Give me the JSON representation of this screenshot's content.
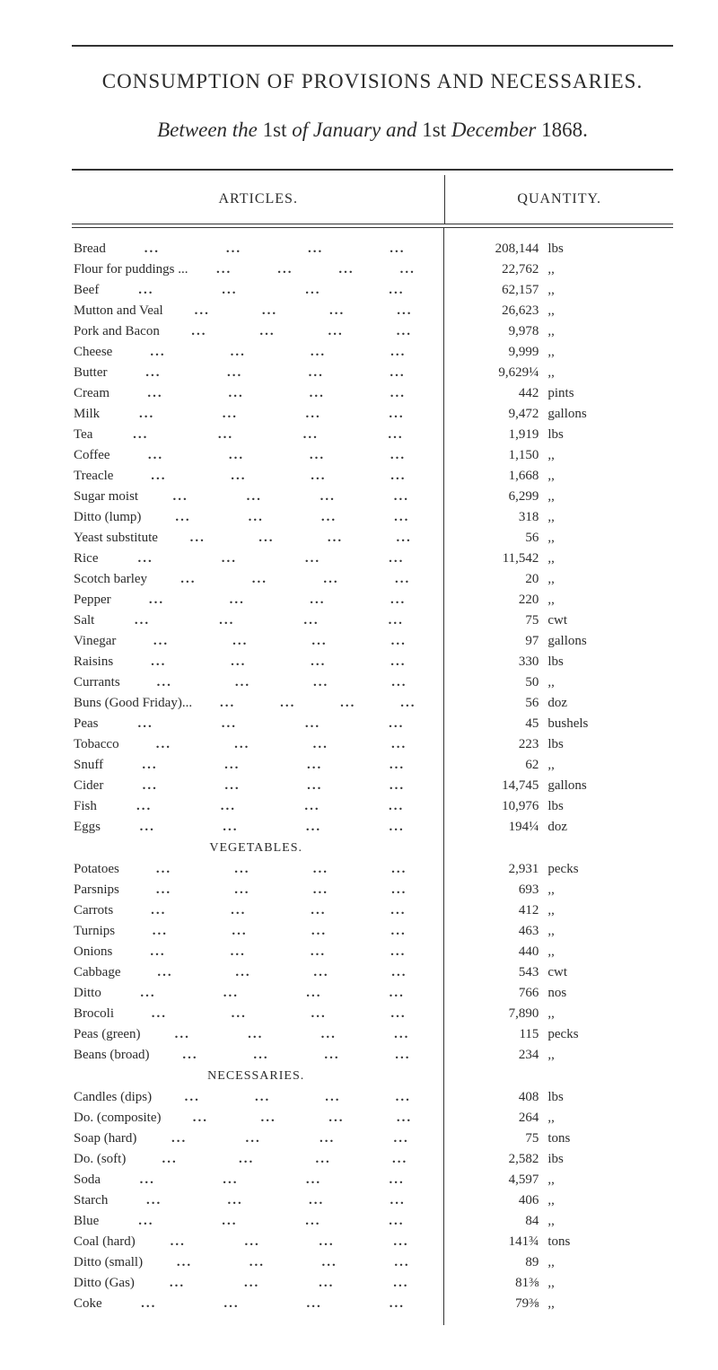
{
  "title": "CONSUMPTION OF PROVISIONS AND NECESSARIES.",
  "subtitle_parts": {
    "a": "Between the ",
    "b": "1st ",
    "c": "of January and ",
    "d": "1st ",
    "e": "December ",
    "f": "1868."
  },
  "column_headers": {
    "articles": "ARTICLES.",
    "quantity": "QUANTITY."
  },
  "section_headers": {
    "vegetables": "VEGETABLES.",
    "necessaries": "NECESSARIES."
  },
  "rows": [
    {
      "label": "Bread",
      "qty": "208,144",
      "unit": "lbs"
    },
    {
      "label": "Flour for puddings ...",
      "qty": "22,762",
      "unit": ",,"
    },
    {
      "label": "Beef",
      "qty": "62,157",
      "unit": ",,"
    },
    {
      "label": "Mutton and Veal",
      "qty": "26,623",
      "unit": ",,"
    },
    {
      "label": "Pork and Bacon",
      "qty": "9,978",
      "unit": ",,"
    },
    {
      "label": "Cheese",
      "qty": "9,999",
      "unit": ",,"
    },
    {
      "label": "Butter",
      "qty": "9,629¼",
      "unit": ",,"
    },
    {
      "label": "Cream",
      "qty": "442",
      "unit": "pints"
    },
    {
      "label": "Milk",
      "qty": "9,472",
      "unit": "gallons"
    },
    {
      "label": "Tea",
      "qty": "1,919",
      "unit": "lbs"
    },
    {
      "label": "Coffee",
      "qty": "1,150",
      "unit": ",,"
    },
    {
      "label": "Treacle",
      "qty": "1,668",
      "unit": ",,"
    },
    {
      "label": "Sugar moist",
      "qty": "6,299",
      "unit": ",,"
    },
    {
      "label": "Ditto (lump)",
      "qty": "318",
      "unit": ",,"
    },
    {
      "label": "Yeast substitute",
      "qty": "56",
      "unit": ",,"
    },
    {
      "label": "Rice",
      "qty": "11,542",
      "unit": ",,"
    },
    {
      "label": "Scotch barley",
      "qty": "20",
      "unit": ",,"
    },
    {
      "label": "Pepper",
      "qty": "220",
      "unit": ",,"
    },
    {
      "label": "Salt",
      "qty": "75",
      "unit": "cwt"
    },
    {
      "label": "Vinegar",
      "qty": "97",
      "unit": "gallons"
    },
    {
      "label": "Raisins",
      "qty": "330",
      "unit": "lbs"
    },
    {
      "label": "Currants",
      "qty": "50",
      "unit": ",,"
    },
    {
      "label": "Buns (Good Friday)...",
      "qty": "56",
      "unit": "doz"
    },
    {
      "label": "Peas",
      "qty": "45",
      "unit": "bushels"
    },
    {
      "label": "Tobacco",
      "qty": "223",
      "unit": "lbs"
    },
    {
      "label": "Snuff",
      "qty": "62",
      "unit": ",,"
    },
    {
      "label": "Cider",
      "qty": "14,745",
      "unit": "gallons"
    },
    {
      "label": "Fish",
      "qty": "10,976",
      "unit": "lbs"
    },
    {
      "label": "Eggs",
      "qty": "194¼",
      "unit": "doz"
    }
  ],
  "veg_rows": [
    {
      "label": "Potatoes",
      "qty": "2,931",
      "unit": "pecks"
    },
    {
      "label": "Parsnips",
      "qty": "693",
      "unit": ",,"
    },
    {
      "label": "Carrots",
      "qty": "412",
      "unit": ",,"
    },
    {
      "label": "Turnips",
      "qty": "463",
      "unit": ",,"
    },
    {
      "label": "Onions",
      "qty": "440",
      "unit": ",,"
    },
    {
      "label": "Cabbage",
      "qty": "543",
      "unit": "cwt"
    },
    {
      "label": "Ditto",
      "qty": "766",
      "unit": "nos"
    },
    {
      "label": "Brocoli",
      "qty": "7,890",
      "unit": ",,"
    },
    {
      "label": "Peas (green)",
      "qty": "115",
      "unit": "pecks"
    },
    {
      "label": "Beans (broad)",
      "qty": "234",
      "unit": ",,"
    }
  ],
  "nec_rows": [
    {
      "label": "Candles (dips)",
      "qty": "408",
      "unit": "lbs"
    },
    {
      "label": "Do. (composite)",
      "qty": "264",
      "unit": ",,"
    },
    {
      "label": "Soap (hard)",
      "qty": "75",
      "unit": "tons"
    },
    {
      "label": "Do. (soft)",
      "qty": "2,582",
      "unit": "ibs"
    },
    {
      "label": "Soda",
      "qty": "4,597",
      "unit": ",,"
    },
    {
      "label": "Starch",
      "qty": "406",
      "unit": ",,"
    },
    {
      "label": "Blue",
      "qty": "84",
      "unit": ",,"
    },
    {
      "label": "Coal (hard)",
      "qty": "141¾",
      "unit": "tons"
    },
    {
      "label": "Ditto (small)",
      "qty": "89",
      "unit": ",,"
    },
    {
      "label": "Ditto (Gas)",
      "qty": "81⅜",
      "unit": ",,"
    },
    {
      "label": "Coke",
      "qty": "79⅜",
      "unit": ",,"
    }
  ],
  "dot_pattern": "..."
}
